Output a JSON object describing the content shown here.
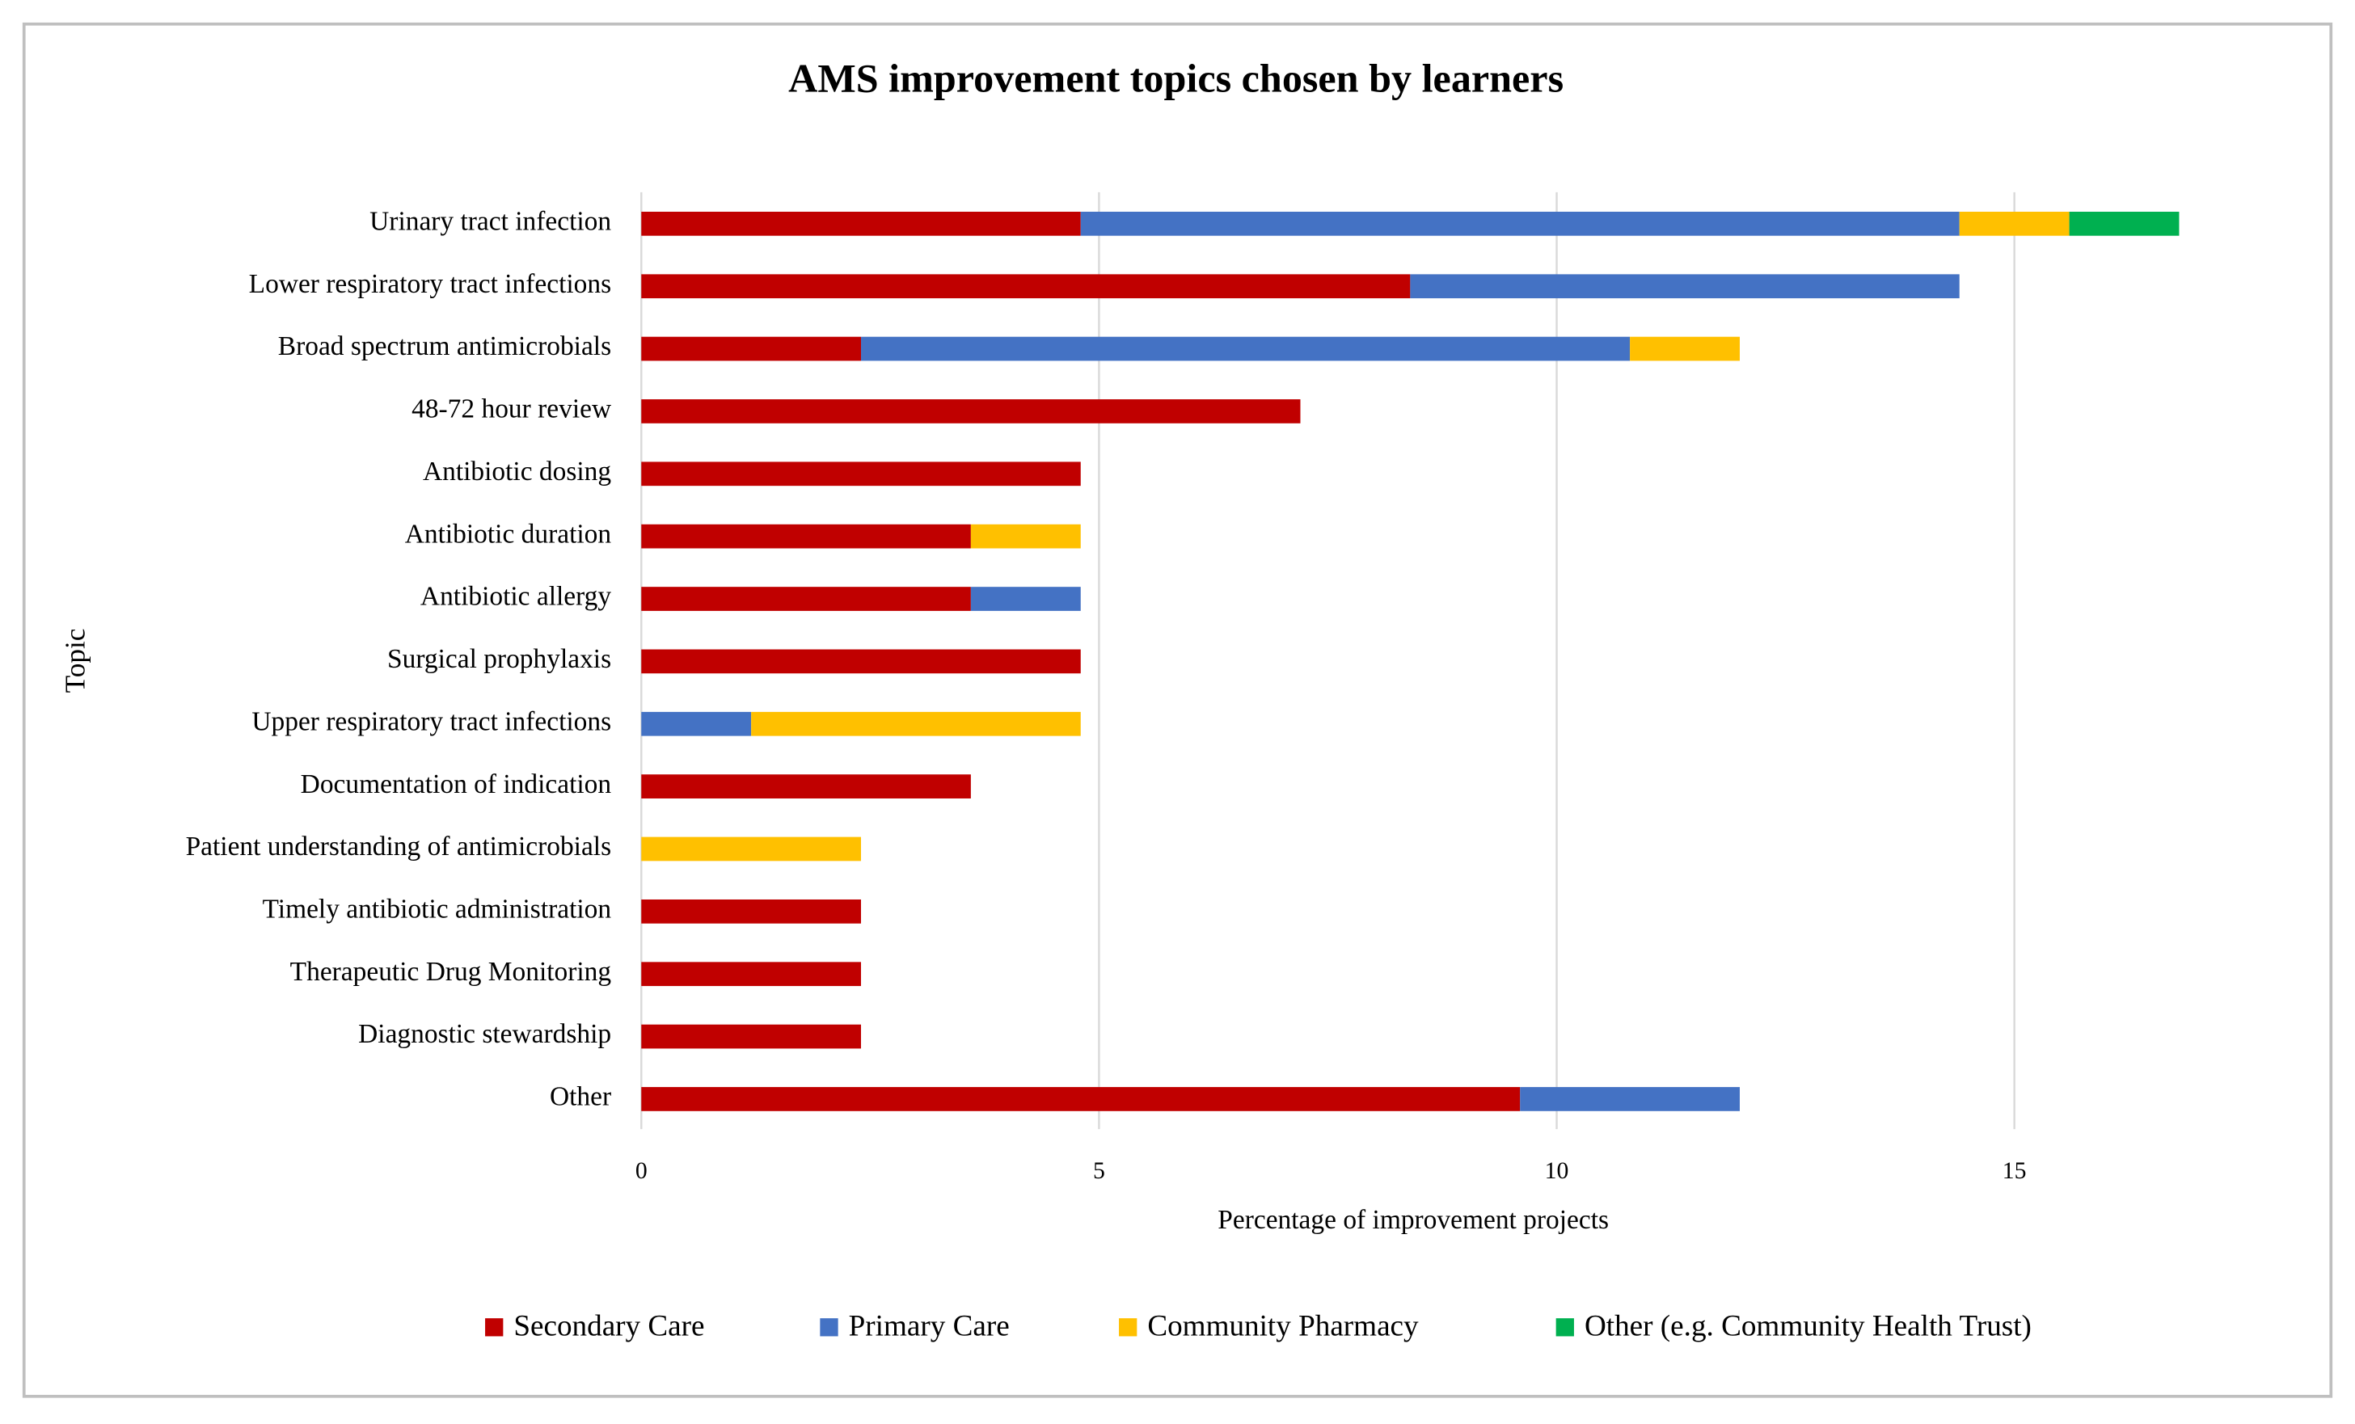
{
  "chart_data": {
    "type": "stacked-bar-horizontal",
    "title": "AMS improvement topics chosen by learners",
    "x_label": "Percentage of improvement projects",
    "y_label": "Topic",
    "categories": [
      "Urinary tract infection",
      "Lower respiratory tract infections",
      "Broad spectrum antimicrobials",
      "48-72 hour review",
      "Antibiotic dosing",
      "Antibiotic duration",
      "Antibiotic allergy",
      "Surgical prophylaxis",
      "Upper respiratory tract infections",
      "Documentation of indication",
      "Patient understanding of antimicrobials",
      "Timely antibiotic administration",
      "Therapeutic Drug Monitoring",
      "Diagnostic stewardship",
      "Other"
    ],
    "series": [
      {
        "name": "Secondary Care",
        "color": "#c00000",
        "values": [
          4.8,
          8.4,
          2.4,
          7.2,
          4.8,
          3.6,
          3.6,
          4.8,
          0,
          3.6,
          0,
          2.4,
          2.4,
          2.4,
          9.6
        ]
      },
      {
        "name": "Primary Care",
        "color": "#4472c4",
        "values": [
          9.6,
          6.0,
          8.4,
          0,
          0,
          0,
          1.2,
          0,
          1.2,
          0,
          0,
          0,
          0,
          0,
          2.4
        ]
      },
      {
        "name": "Community Pharmacy",
        "color": "#ffc000",
        "values": [
          1.2,
          0,
          1.2,
          0,
          0,
          1.2,
          0,
          0,
          3.6,
          0,
          2.4,
          0,
          0,
          0,
          0
        ]
      },
      {
        "name": "Other (e.g. Community Health Trust)",
        "color": "#00b050",
        "values": [
          1.2,
          0,
          0,
          0,
          0,
          0,
          0,
          0,
          0,
          0,
          0,
          0,
          0,
          0,
          0
        ]
      }
    ],
    "xlim": [
      0,
      16.9
    ],
    "xticks": [
      0,
      5,
      10,
      15
    ],
    "grid": true,
    "legend": "bottom"
  }
}
